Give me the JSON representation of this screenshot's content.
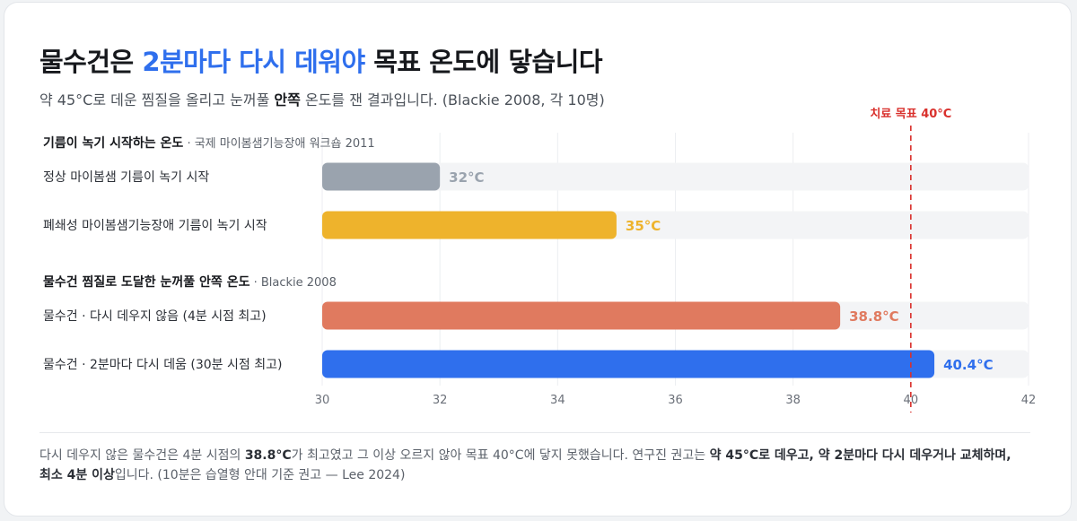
{
  "header": {
    "title_pre": "물수건은 ",
    "title_accent": "2분마다 다시 데워야",
    "title_post": " 목표 온도에 닿습니다",
    "subtitle_pre": "약 45°C로 데운 찜질을 올리고 눈꺼풀 ",
    "subtitle_bold": "안쪽",
    "subtitle_post": " 온도를 잰 결과입니다. (Blackie 2008, 각 10명)"
  },
  "chart_data": {
    "type": "bar",
    "orientation": "horizontal",
    "xlim": [
      30,
      42
    ],
    "ticks": [
      30,
      32,
      34,
      36,
      38,
      40,
      42
    ],
    "target": {
      "value": 40,
      "label": "치료 목표 40°C",
      "color": "#d9302c"
    },
    "groups": [
      {
        "title": "기름이 녹기 시작하는 온도",
        "source": " · 국제 마이봄샘기능장애 워크숍 2011",
        "bars": [
          {
            "label": "정상 마이봄샘 기름이 녹기 시작",
            "value": 32,
            "value_label": "32°C",
            "color": "#9aa3ae"
          },
          {
            "label": "폐쇄성 마이봄샘기능장애 기름이 녹기 시작",
            "value": 35,
            "value_label": "35°C",
            "color": "#eeb32c"
          }
        ]
      },
      {
        "title": "물수건 찜질로 도달한 눈꺼풀 안쪽 온도",
        "source": " · Blackie 2008",
        "bars": [
          {
            "label": "물수건 · 다시 데우지 않음 (4분 시점 최고)",
            "value": 38.8,
            "value_label": "38.8°C",
            "color": "#e07a5f"
          },
          {
            "label": "물수건 · 2분마다 다시 데움 (30분 시점 최고)",
            "value": 40.4,
            "value_label": "40.4°C",
            "color": "#2f6fed"
          }
        ]
      }
    ],
    "track_color": "#f3f4f6",
    "grid": true
  },
  "footnote": {
    "p1": "다시 데우지 않은 물수건은 4분 시점의 ",
    "b1": "38.8°C",
    "p2": "가 최고였고 그 이상 오르지 않아 목표 40°C에 닿지 못했습니다. 연구진 권고는 ",
    "b2": "약 45°C로 데우고, 약 2분마다 다시 데우거나 교체하며, 최소 4분 이상",
    "p3": "입니다. (10분은 습열형 안대 기준 권고 — Lee 2024)"
  }
}
